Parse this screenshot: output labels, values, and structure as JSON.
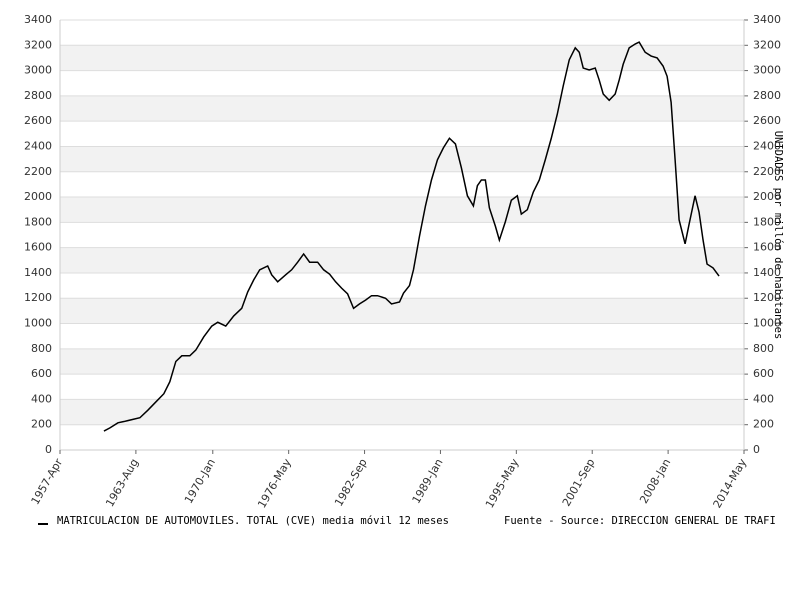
{
  "chart_data": {
    "type": "line",
    "y_axis_label": "UNIDADES por millón de habitantes",
    "source": "Fuente - Source: DIRECCION GENERAL DE TRAFI",
    "x": [
      "1960-Dec",
      "1961-Jun",
      "1962-Feb",
      "1962-Aug",
      "1963-Apr",
      "1963-Dec",
      "1964-Aug",
      "1965-Apr",
      "1965-Dec",
      "1966-Jun",
      "1966-Dec",
      "1967-Jun",
      "1968-Feb",
      "1968-Aug",
      "1969-Apr",
      "1969-Dec",
      "1970-Jun",
      "1971-Feb",
      "1971-Oct",
      "1972-Jun",
      "1972-Dec",
      "1973-Jun",
      "1973-Dec",
      "1974-Aug",
      "1974-Dec",
      "1975-Jun",
      "1976-Feb",
      "1976-Aug",
      "1977-Feb",
      "1977-Aug",
      "1978-Feb",
      "1978-Oct",
      "1979-Apr",
      "1979-Oct",
      "1980-Apr",
      "1980-Oct",
      "1981-Apr",
      "1981-Oct",
      "1982-Apr",
      "1982-Oct",
      "1983-Apr",
      "1983-Oct",
      "1984-Jun",
      "1984-Dec",
      "1985-Aug",
      "1985-Dec",
      "1986-Jun",
      "1986-Oct",
      "1987-Apr",
      "1987-Oct",
      "1988-Apr",
      "1988-Oct",
      "1989-Apr",
      "1989-Oct",
      "1990-Apr",
      "1990-Oct",
      "1991-Apr",
      "1991-Oct",
      "1992-Feb",
      "1992-Jun",
      "1992-Oct",
      "1993-Feb",
      "1993-Aug",
      "1993-Dec",
      "1994-Jun",
      "1994-Dec",
      "1995-Jun",
      "1995-Oct",
      "1996-Apr",
      "1996-Oct",
      "1997-Apr",
      "1997-Oct",
      "1998-Apr",
      "1998-Oct",
      "1999-Apr",
      "1999-Oct",
      "2000-Apr",
      "2000-Aug",
      "2000-Dec",
      "2001-Jun",
      "2001-Dec",
      "2002-Apr",
      "2002-Aug",
      "2003-Feb",
      "2003-Aug",
      "2003-Dec",
      "2004-Apr",
      "2004-Oct",
      "2005-Apr",
      "2005-Aug",
      "2006-Feb",
      "2006-Aug",
      "2007-Feb",
      "2007-Aug",
      "2007-Dec",
      "2008-Apr",
      "2008-Aug",
      "2008-Dec",
      "2009-Jun",
      "2009-Oct",
      "2010-Apr",
      "2010-Aug",
      "2010-Dec",
      "2011-Apr",
      "2011-Oct",
      "2012-Apr"
    ],
    "series": [
      {
        "name": "MATRICULACION DE AUTOMOVILES. TOTAL (CVE) media móvil 12 meses",
        "color": "#000000",
        "values": [
          150,
          175,
          215,
          225,
          240,
          255,
          315,
          380,
          445,
          540,
          700,
          745,
          745,
          790,
          895,
          980,
          1010,
          980,
          1060,
          1120,
          1250,
          1345,
          1425,
          1455,
          1385,
          1330,
          1385,
          1425,
          1485,
          1550,
          1485,
          1485,
          1425,
          1390,
          1330,
          1280,
          1235,
          1120,
          1155,
          1185,
          1220,
          1220,
          1200,
          1155,
          1170,
          1240,
          1300,
          1425,
          1690,
          1930,
          2135,
          2295,
          2390,
          2465,
          2420,
          2230,
          2010,
          1930,
          2090,
          2135,
          2135,
          1915,
          1770,
          1660,
          1805,
          1975,
          2010,
          1865,
          1900,
          2040,
          2135,
          2295,
          2465,
          2655,
          2880,
          3085,
          3180,
          3145,
          3020,
          3005,
          3020,
          2925,
          2815,
          2765,
          2815,
          2925,
          3050,
          3180,
          3210,
          3225,
          3145,
          3115,
          3100,
          3035,
          2955,
          2750,
          2295,
          1820,
          1630,
          1785,
          2010,
          1880,
          1660,
          1470,
          1440,
          1375
        ]
      }
    ],
    "xlim": [
      "1957-Apr",
      "2014-May"
    ],
    "xticks": [
      "1957-Apr",
      "1963-Aug",
      "1970-Jan",
      "1976-May",
      "1982-Sep",
      "1989-Jan",
      "1995-May",
      "2001-Sep",
      "2008-Jan",
      "2014-May"
    ],
    "ylim": [
      0,
      3400
    ],
    "yticks": [
      0,
      200,
      400,
      600,
      800,
      1000,
      1200,
      1400,
      1600,
      1800,
      2000,
      2200,
      2400,
      2600,
      2800,
      3000,
      3200,
      3400
    ],
    "y2lim": [
      0,
      3400
    ],
    "y2ticks": [
      0,
      200,
      400,
      600,
      800,
      1000,
      1200,
      1400,
      1600,
      1800,
      2000,
      2200,
      2400,
      2600,
      2800,
      3000,
      3200,
      3400
    ],
    "grid": true
  }
}
